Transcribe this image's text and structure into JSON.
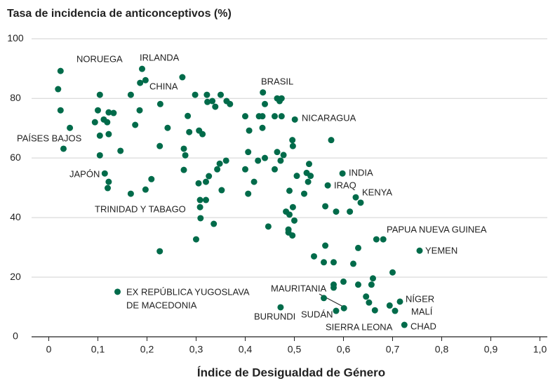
{
  "chart_data": {
    "type": "scatter",
    "title": "Tasa de incidencia de anticonceptivos (%)",
    "x_label": "Índice de Desigualdad de Género",
    "color": "#006b4a",
    "grid": true,
    "xlim": [
      -0.035,
      1.015
    ],
    "ylim": [
      0,
      101
    ],
    "xticks": [
      0,
      {
        "value": 0.1,
        "label": "0,1"
      },
      {
        "value": 0.2,
        "label": "0,2"
      },
      {
        "value": 0.3,
        "label": "0,3"
      },
      {
        "value": 0.4,
        "label": "0,4"
      },
      {
        "value": 0.5,
        "label": "0,5"
      },
      {
        "value": 0.6,
        "label": "0,6"
      },
      {
        "value": 0.7,
        "label": "0,7"
      },
      {
        "value": 0.8,
        "label": "0,8"
      },
      {
        "value": 0.9,
        "label": "0,9"
      },
      {
        "value": 1.0,
        "label": "1,0"
      }
    ],
    "yticks": [
      0,
      20,
      40,
      60,
      80,
      100
    ],
    "annotations": [
      "NORUEGA",
      "IRLANDA",
      "CHINA",
      "PAÍSES BAJOS",
      "JAPÓN",
      "TRINIDAD Y TABAGO",
      "EX REPÚBLICA YUGOSLAVA",
      "DE MACEDONIA",
      "BRASIL",
      "NICARAGUA",
      "INDIA",
      "IRAQ",
      "KENYA",
      "PAPUA NUEVA GUINEA",
      "YEMEN",
      "MAURITANIA",
      "BURUNDI",
      "SUDÁN",
      "SIERRA LEONA",
      "NÍGER",
      "MALÍ",
      "CHAD"
    ],
    "x": [
      0.024,
      0.019,
      0.024,
      0.043,
      0.03,
      0.104,
      0.1,
      0.122,
      0.132,
      0.094,
      0.112,
      0.119,
      0.122,
      0.104,
      0.104,
      0.146,
      0.114,
      0.122,
      0.12,
      0.167,
      0.197,
      0.209,
      0.19,
      0.197,
      0.186,
      0.167,
      0.185,
      0.176,
      0.227,
      0.226,
      0.242,
      0.272,
      0.298,
      0.283,
      0.275,
      0.278,
      0.275,
      0.286,
      0.306,
      0.313,
      0.226,
      0.305,
      0.308,
      0.308,
      0.32,
      0.309,
      0.336,
      0.3,
      0.14,
      0.322,
      0.323,
      0.333,
      0.339,
      0.35,
      0.362,
      0.369,
      0.348,
      0.343,
      0.361,
      0.352,
      0.326,
      0.32,
      0.4,
      0.408,
      0.4,
      0.406,
      0.406,
      0.418,
      0.426,
      0.44,
      0.436,
      0.44,
      0.435,
      0.435,
      0.428,
      0.46,
      0.465,
      0.47,
      0.474,
      0.474,
      0.465,
      0.46,
      0.472,
      0.478,
      0.49,
      0.496,
      0.497,
      0.501,
      0.505,
      0.525,
      0.53,
      0.528,
      0.533,
      0.52,
      0.575,
      0.598,
      0.568,
      0.625,
      0.585,
      0.613,
      0.635,
      0.563,
      0.483,
      0.49,
      0.497,
      0.5,
      0.488,
      0.488,
      0.496,
      0.447,
      0.563,
      0.54,
      0.56,
      0.58,
      0.62,
      0.63,
      0.667,
      0.681,
      0.755,
      0.7,
      0.58,
      0.58,
      0.6,
      0.63,
      0.66,
      0.657,
      0.56,
      0.646,
      0.652,
      0.694,
      0.715,
      0.705,
      0.664,
      0.724,
      0.585,
      0.601,
      0.472
    ],
    "values": [
      89.2,
      83.1,
      76.0,
      70.1,
      63.1,
      81.2,
      76.0,
      75.3,
      75.1,
      72.0,
      72.9,
      72.0,
      68.0,
      67.5,
      60.9,
      62.4,
      54.8,
      52.0,
      49.9,
      48.0,
      49.4,
      52.9,
      89.9,
      86.1,
      85.2,
      81.2,
      76.0,
      71.1,
      78.1,
      64.0,
      70.1,
      87.1,
      81.2,
      74.1,
      63.1,
      60.9,
      56.0,
      68.7,
      69.2,
      68.0,
      28.7,
      51.5,
      45.9,
      43.5,
      45.9,
      39.8,
      37.9,
      32.7,
      15.1,
      81.2,
      78.8,
      79.1,
      77.2,
      81.2,
      79.1,
      78.1,
      58.1,
      56.2,
      59.1,
      49.2,
      53.9,
      52.0,
      74.0,
      69.2,
      56.2,
      62.0,
      48.0,
      52.0,
      59.1,
      60.0,
      82.0,
      78.1,
      74.0,
      70.1,
      74.0,
      74.0,
      80.0,
      79.1,
      80.0,
      74.0,
      62.0,
      56.2,
      59.1,
      61.0,
      49.0,
      66.0,
      64.0,
      72.9,
      54.0,
      55.0,
      58.0,
      52.0,
      54.0,
      48.0,
      66.0,
      54.8,
      50.8,
      46.8,
      42.0,
      42.0,
      45.0,
      43.8,
      42.0,
      41.0,
      43.5,
      39.0,
      36.0,
      35.0,
      34.0,
      37.0,
      30.6,
      27.0,
      25.0,
      25.0,
      24.5,
      29.8,
      32.7,
      32.7,
      28.9,
      21.6,
      17.5,
      16.5,
      18.5,
      17.5,
      19.6,
      17.5,
      13.0,
      13.5,
      11.5,
      10.5,
      11.8,
      8.7,
      8.9,
      4.0,
      8.7,
      9.6,
      9.9
    ]
  }
}
